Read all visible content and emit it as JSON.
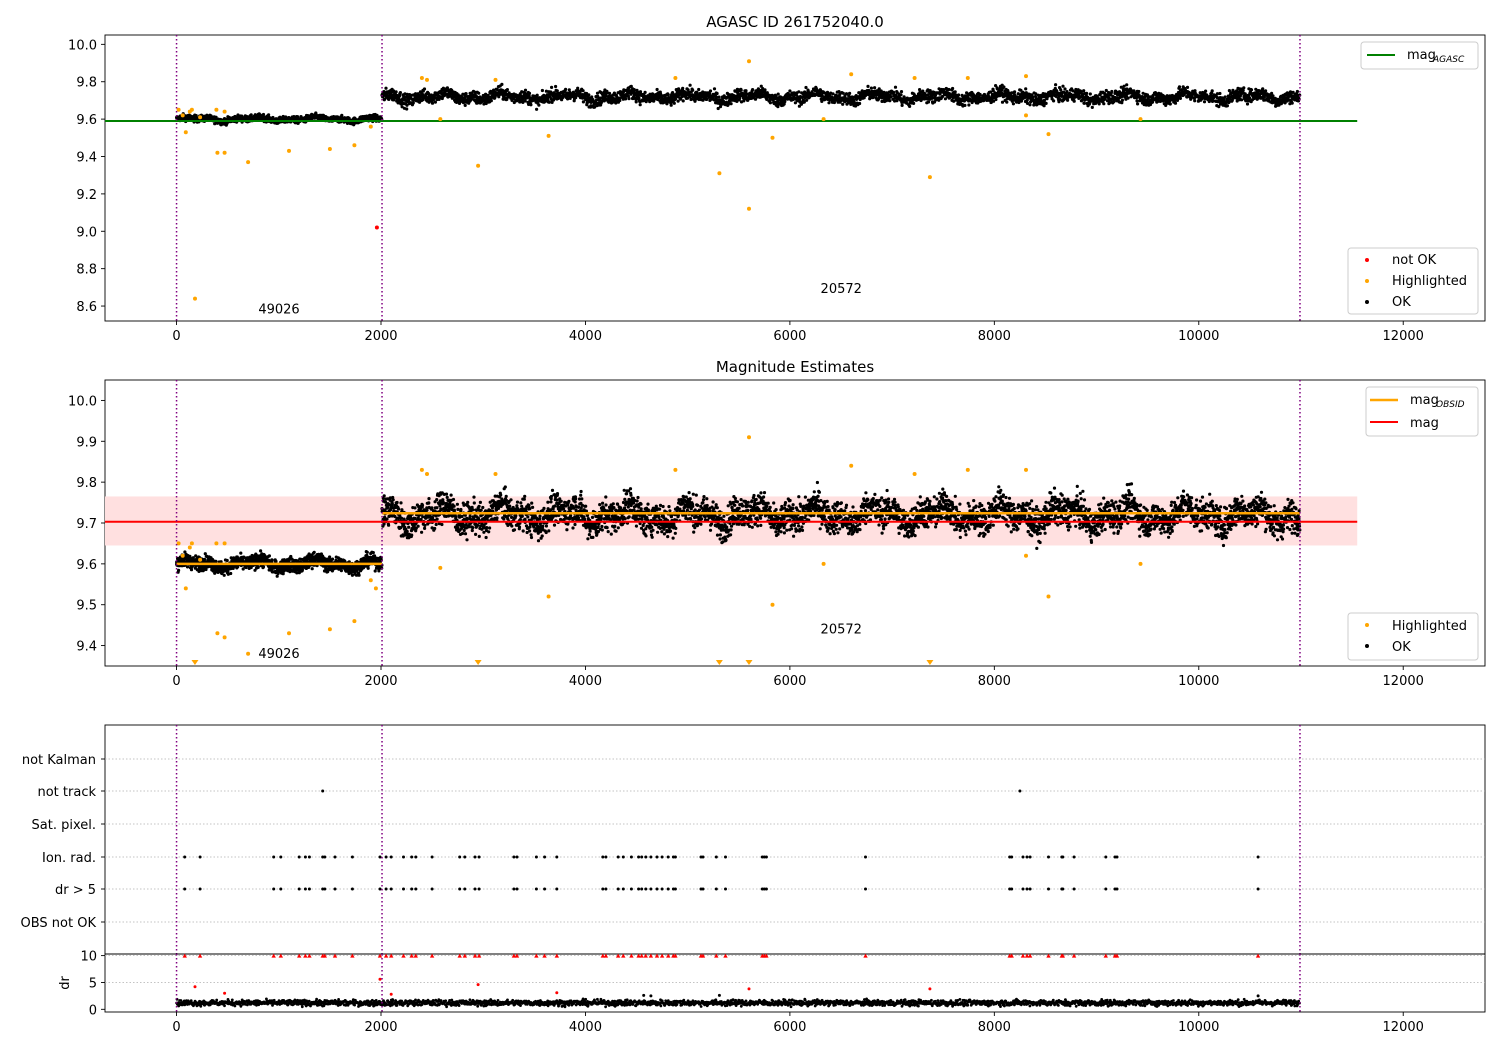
{
  "figure": {
    "top_title": "AGASC ID 261752040.0",
    "middle_title": "Magnitude Estimates"
  },
  "colors": {
    "ok": "#000000",
    "highlighted": "#ffa500",
    "not_ok": "#ff0000",
    "agasc_line": "#008000",
    "mag_line": "#ff0000",
    "obsid_line": "#ffa500",
    "band": "#ffe0e0",
    "obs_separator": "#800080",
    "grid": "#b0b0b0"
  },
  "chart_data": [
    {
      "type": "scatter",
      "panel": "top",
      "title": "AGASC ID 261752040.0",
      "xlim": [
        -700,
        12800
      ],
      "ylim": [
        8.52,
        10.05
      ],
      "x_ticks": [
        0,
        2000,
        4000,
        6000,
        8000,
        10000,
        12000
      ],
      "y_ticks": [
        8.6,
        8.8,
        9.0,
        9.2,
        9.4,
        9.6,
        9.8,
        10.0
      ],
      "x_tick_labels": [
        "0",
        "2000",
        "4000",
        "6000",
        "8000",
        "10000",
        "12000"
      ],
      "y_tick_labels": [
        "8.6",
        "8.8",
        "9.0",
        "9.2",
        "9.4",
        "9.6",
        "9.8",
        "10.0"
      ],
      "obs_boundaries": [
        0,
        2010,
        10990
      ],
      "obs_labels": [
        {
          "text": "49026",
          "x": 800,
          "y": 8.56
        },
        {
          "text": "20572",
          "x": 6300,
          "y": 8.67
        }
      ],
      "hlines": [
        {
          "name": "mag_AGASC",
          "y": 9.59,
          "xmin": -700,
          "xmax": 11550,
          "color": "#008000"
        }
      ],
      "ok_segments": [
        {
          "x_start": 0,
          "x_end": 2010,
          "mean": 9.6,
          "spread": 0.02
        },
        {
          "x_start": 2010,
          "x_end": 10990,
          "mean": 9.72,
          "spread": 0.04
        }
      ],
      "highlighted_points": [
        [
          20,
          9.65
        ],
        [
          60,
          9.62
        ],
        [
          90,
          9.53
        ],
        [
          130,
          9.64
        ],
        [
          150,
          9.65
        ],
        [
          180,
          8.64
        ],
        [
          230,
          9.61
        ],
        [
          390,
          9.65
        ],
        [
          400,
          9.42
        ],
        [
          470,
          9.42
        ],
        [
          470,
          9.64
        ],
        [
          700,
          9.37
        ],
        [
          1100,
          9.43
        ],
        [
          1500,
          9.44
        ],
        [
          1740,
          9.46
        ],
        [
          1900,
          9.56
        ],
        [
          2400,
          9.82
        ],
        [
          2450,
          9.81
        ],
        [
          2580,
          9.6
        ],
        [
          2950,
          9.35
        ],
        [
          3120,
          9.81
        ],
        [
          3640,
          9.51
        ],
        [
          4880,
          9.82
        ],
        [
          5310,
          9.31
        ],
        [
          5600,
          9.91
        ],
        [
          5600,
          9.12
        ],
        [
          5830,
          9.5
        ],
        [
          6330,
          9.6
        ],
        [
          6600,
          9.84
        ],
        [
          7220,
          9.82
        ],
        [
          7370,
          9.29
        ],
        [
          7740,
          9.82
        ],
        [
          8310,
          9.83
        ],
        [
          8310,
          9.62
        ],
        [
          8530,
          9.52
        ],
        [
          9430,
          9.6
        ]
      ],
      "not_ok_points": [
        [
          1960,
          9.02
        ]
      ],
      "legends": [
        {
          "location": "upper right",
          "entries": [
            {
              "label": "mag",
              "sub": "AGASC",
              "kind": "line",
              "color": "#008000"
            }
          ]
        },
        {
          "location": "lower right",
          "entries": [
            {
              "label": "not OK",
              "kind": "dot",
              "color": "#ff0000"
            },
            {
              "label": "Highlighted",
              "kind": "dot",
              "color": "#ffa500"
            },
            {
              "label": "OK",
              "kind": "dot",
              "color": "#000000"
            }
          ]
        }
      ]
    },
    {
      "type": "scatter",
      "panel": "middle",
      "title": "Magnitude Estimates",
      "xlim": [
        -700,
        12800
      ],
      "ylim": [
        9.35,
        10.05
      ],
      "x_ticks": [
        0,
        2000,
        4000,
        6000,
        8000,
        10000,
        12000
      ],
      "y_ticks": [
        9.4,
        9.5,
        9.6,
        9.7,
        9.8,
        9.9,
        10.0
      ],
      "x_tick_labels": [
        "0",
        "2000",
        "4000",
        "6000",
        "8000",
        "10000",
        "12000"
      ],
      "y_tick_labels": [
        "9.4",
        "9.5",
        "9.6",
        "9.7",
        "9.8",
        "9.9",
        "10.0"
      ],
      "obs_boundaries": [
        0,
        2010,
        10990
      ],
      "obs_labels": [
        {
          "text": "49026",
          "x": 800,
          "y": 9.37
        },
        {
          "text": "20572",
          "x": 6300,
          "y": 9.43
        }
      ],
      "band": {
        "y_low": 9.645,
        "y_high": 9.765,
        "xmin": -700,
        "xmax": 11550
      },
      "hlines": [
        {
          "name": "mag",
          "y": 9.703,
          "xmin": -700,
          "xmax": 11550,
          "color": "#ff0000"
        }
      ],
      "obsid_segments": [
        {
          "x_start": 0,
          "x_end": 2010,
          "y": 9.6
        },
        {
          "x_start": 2010,
          "x_end": 10990,
          "y": 9.724
        }
      ],
      "ok_segments": [
        {
          "x_start": 0,
          "x_end": 2010,
          "mean": 9.6,
          "spread": 0.02
        },
        {
          "x_start": 2010,
          "x_end": 10990,
          "mean": 9.72,
          "spread": 0.045
        }
      ],
      "highlighted_points": [
        [
          20,
          9.65
        ],
        [
          60,
          9.62
        ],
        [
          90,
          9.54
        ],
        [
          130,
          9.64
        ],
        [
          150,
          9.65
        ],
        [
          230,
          9.61
        ],
        [
          390,
          9.65
        ],
        [
          400,
          9.43
        ],
        [
          470,
          9.42
        ],
        [
          470,
          9.65
        ],
        [
          700,
          9.38
        ],
        [
          1100,
          9.43
        ],
        [
          1500,
          9.44
        ],
        [
          1740,
          9.46
        ],
        [
          1900,
          9.56
        ],
        [
          1950,
          9.54
        ],
        [
          2400,
          9.83
        ],
        [
          2450,
          9.82
        ],
        [
          2580,
          9.59
        ],
        [
          3120,
          9.82
        ],
        [
          3640,
          9.52
        ],
        [
          4880,
          9.83
        ],
        [
          5600,
          9.91
        ],
        [
          5830,
          9.5
        ],
        [
          6330,
          9.6
        ],
        [
          6600,
          9.84
        ],
        [
          7220,
          9.82
        ],
        [
          7740,
          9.83
        ],
        [
          8310,
          9.83
        ],
        [
          8310,
          9.62
        ],
        [
          8530,
          9.52
        ],
        [
          9430,
          9.6
        ]
      ],
      "clipped_points_x": [
        180,
        2950,
        5310,
        5600,
        7370
      ],
      "legends": [
        {
          "location": "upper right",
          "entries": [
            {
              "label": "mag",
              "sub": "OBSID",
              "kind": "line",
              "color": "#ffa500"
            },
            {
              "label": "mag",
              "kind": "line",
              "color": "#ff0000"
            }
          ]
        },
        {
          "location": "lower right",
          "entries": [
            {
              "label": "Highlighted",
              "kind": "dot",
              "color": "#ffa500"
            },
            {
              "label": "OK",
              "kind": "dot",
              "color": "#000000"
            }
          ]
        }
      ]
    },
    {
      "type": "scatter",
      "panel": "flags",
      "xlim": [
        -700,
        12800
      ],
      "flag_rows": [
        "not Kalman",
        "not track",
        "Sat. pixel.",
        "Ion. rad.",
        "dr > 5",
        "OBS not OK"
      ],
      "flag_points": {
        "not Kalman": [],
        "not track": [
          1430,
          8250
        ],
        "Sat. pixel.": [],
        "Ion. rad.": [
          80,
          230,
          950,
          1020,
          1200,
          1260,
          1300,
          1430,
          1450,
          1550,
          1720,
          1990,
          2050,
          2100,
          2220,
          2300,
          2340,
          2500,
          2770,
          2820,
          2920,
          2960,
          3300,
          3330,
          3520,
          3600,
          3720,
          4170,
          4200,
          4320,
          4370,
          4450,
          4520,
          4550,
          4590,
          4640,
          4700,
          4750,
          4810,
          4860,
          4880,
          5130,
          5150,
          5280,
          5370,
          5730,
          5750,
          5770,
          6740,
          8150,
          8170,
          8280,
          8320,
          8350,
          8530,
          8660,
          8670,
          8780,
          9090,
          9180,
          9200,
          10580
        ],
        "dr > 5": [
          80,
          230,
          950,
          1020,
          1200,
          1260,
          1300,
          1430,
          1450,
          1550,
          1720,
          1990,
          2050,
          2100,
          2220,
          2300,
          2340,
          2500,
          2770,
          2820,
          2920,
          2960,
          3300,
          3330,
          3520,
          3600,
          3720,
          4170,
          4200,
          4320,
          4370,
          4450,
          4520,
          4550,
          4590,
          4640,
          4700,
          4750,
          4810,
          4860,
          4880,
          5130,
          5150,
          5280,
          5370,
          5730,
          5750,
          5770,
          6740,
          8150,
          8170,
          8280,
          8320,
          8350,
          8530,
          8660,
          8670,
          8780,
          9090,
          9180,
          9200,
          10580
        ],
        "OBS not OK": []
      },
      "obs_boundaries": [
        0,
        2010,
        10990
      ]
    },
    {
      "type": "scatter",
      "panel": "dr",
      "ylabel": "dr",
      "xlim": [
        -700,
        12800
      ],
      "ylim": [
        -0.5,
        10.3
      ],
      "x_ticks": [
        0,
        2000,
        4000,
        6000,
        8000,
        10000,
        12000
      ],
      "y_ticks": [
        0,
        5,
        10
      ],
      "x_tick_labels": [
        "0",
        "2000",
        "4000",
        "6000",
        "8000",
        "10000",
        "12000"
      ],
      "y_tick_labels": [
        "0",
        "5",
        "10"
      ],
      "obs_boundaries": [
        0,
        2010,
        10990
      ],
      "ok_band": {
        "x_start": 0,
        "x_end": 10990,
        "mean": 1.2,
        "spread": 0.7
      },
      "red_points_at_10": [
        80,
        230,
        950,
        1020,
        1200,
        1260,
        1300,
        1430,
        1450,
        1550,
        1720,
        1990,
        2050,
        2100,
        2220,
        2300,
        2340,
        2500,
        2770,
        2820,
        2920,
        2960,
        3300,
        3330,
        3520,
        3600,
        3720,
        4170,
        4200,
        4320,
        4370,
        4450,
        4520,
        4550,
        4590,
        4640,
        4700,
        4750,
        4810,
        4860,
        4880,
        5130,
        5150,
        5280,
        5370,
        5730,
        5750,
        5770,
        6740,
        8150,
        8170,
        8280,
        8320,
        8350,
        8530,
        8660,
        8670,
        8780,
        9090,
        9180,
        9200,
        10580
      ],
      "red_points": [
        [
          180,
          4.2
        ],
        [
          470,
          3.0
        ],
        [
          1990,
          5.6
        ],
        [
          2100,
          2.8
        ],
        [
          2950,
          4.6
        ],
        [
          3720,
          3.1
        ],
        [
          5600,
          3.8
        ],
        [
          7370,
          3.8
        ]
      ],
      "black_points": [
        [
          4570,
          2.6
        ],
        [
          4640,
          2.5
        ],
        [
          5310,
          2.6
        ],
        [
          10580,
          2.5
        ]
      ]
    }
  ]
}
